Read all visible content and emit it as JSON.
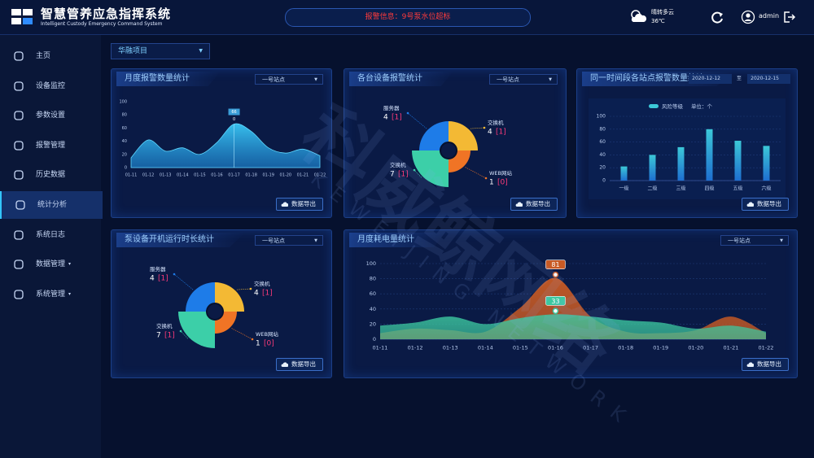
{
  "header": {
    "title": "智慧管养应急指挥系统",
    "subtitle": "Intelligent Custody Emergency Command System",
    "alert": "报警信息：9号泵水位超标",
    "weather": "晴转多云",
    "temperature": "36℃",
    "user": "admin"
  },
  "sidebar": {
    "items": [
      "主页",
      "设备监控",
      "参数设置",
      "报警管理",
      "历史数据",
      "统计分析",
      "系统日志",
      "数据管理",
      "系统管理"
    ],
    "active": 5,
    "expandable": [
      7,
      8
    ]
  },
  "project": "华融项目",
  "watermark": {
    "cn": "科威鲸网络",
    "en": "KEWEIJING NETWORK"
  },
  "panels": [
    {
      "title": "月度报警数量统计",
      "select": "一号站点",
      "export": "数据导出",
      "chart": {
        "type": "area",
        "color": "#1f8fe0",
        "categories": [
          "01-11",
          "01-12",
          "01-13",
          "01-14",
          "01-15",
          "01-16",
          "01-17",
          "01-18",
          "01-19",
          "01-20",
          "01-21",
          "01-22"
        ],
        "values": [
          15,
          42,
          25,
          30,
          20,
          38,
          66,
          55,
          30,
          22,
          28,
          18
        ],
        "ylim": [
          0,
          100
        ],
        "yticks": [
          0,
          20,
          40,
          60,
          80,
          100
        ],
        "grid": false,
        "tooltip_index": 6,
        "tooltip_note": "0"
      }
    },
    {
      "title": "各台设备报警统计",
      "select": "一号站点",
      "export": "数据导出",
      "chart": {
        "type": "rose",
        "items": [
          {
            "name": "服务器",
            "value": 4,
            "alarm": "[1]",
            "color": "#1e7ce8"
          },
          {
            "name": "交换机",
            "value": 4,
            "alarm": "[1]",
            "color": "#f3b934"
          },
          {
            "name": "交换机",
            "value": 7,
            "alarm": "[1]",
            "color": "#3ccfa8"
          },
          {
            "name": "WEB网站",
            "value": 1,
            "alarm": "[0]",
            "color": "#f07425"
          }
        ]
      }
    },
    {
      "title": "同一时间段各站点报警数量统计",
      "date_from": "2020-12-12",
      "date_sep": "至",
      "date_to": "2020-12-15",
      "export": "数据导出",
      "chart": {
        "type": "bar",
        "legend": "风险等级",
        "unit": "单位：个",
        "color": "#3cc8d8",
        "categories": [
          "一级",
          "二级",
          "三级",
          "四级",
          "五级",
          "六级"
        ],
        "values": [
          22,
          40,
          52,
          80,
          62,
          54
        ],
        "ylim": [
          0,
          100
        ],
        "yticks": [
          0,
          20,
          40,
          60,
          80,
          100
        ],
        "grid": true
      }
    },
    {
      "title": "泵设备开机运行时长统计",
      "select": "一号站点",
      "export": "数据导出",
      "chart": {
        "type": "rose",
        "items": [
          {
            "name": "服务器",
            "value": 4,
            "alarm": "[1]",
            "color": "#1e7ce8"
          },
          {
            "name": "交换机",
            "value": 4,
            "alarm": "[1]",
            "color": "#f3b934"
          },
          {
            "name": "交换机",
            "value": 7,
            "alarm": "[1]",
            "color": "#3ccfa8"
          },
          {
            "name": "WEB网站",
            "value": 1,
            "alarm": "[0]",
            "color": "#f07425"
          }
        ]
      }
    },
    {
      "title": "月度耗电量统计",
      "select": "一号站点",
      "export": "数据导出",
      "chart": {
        "type": "area2",
        "categories": [
          "01-11",
          "01-12",
          "01-13",
          "01-14",
          "01-15",
          "01-16",
          "01-17",
          "01-18",
          "01-19",
          "01-20",
          "01-21",
          "01-22"
        ],
        "series": [
          {
            "color": "#c85a24",
            "values": [
              8,
              14,
              12,
              10,
              42,
              81,
              30,
              10,
              8,
              12,
              30,
              8
            ]
          },
          {
            "color": "#3cc8a0",
            "values": [
              18,
              22,
              30,
              20,
              28,
              33,
              30,
              25,
              22,
              14,
              18,
              10
            ]
          }
        ],
        "ylim": [
          0,
          100
        ],
        "yticks": [
          0,
          20,
          40,
          60,
          80,
          100
        ],
        "grid": true,
        "tooltip_index": 5
      }
    }
  ]
}
